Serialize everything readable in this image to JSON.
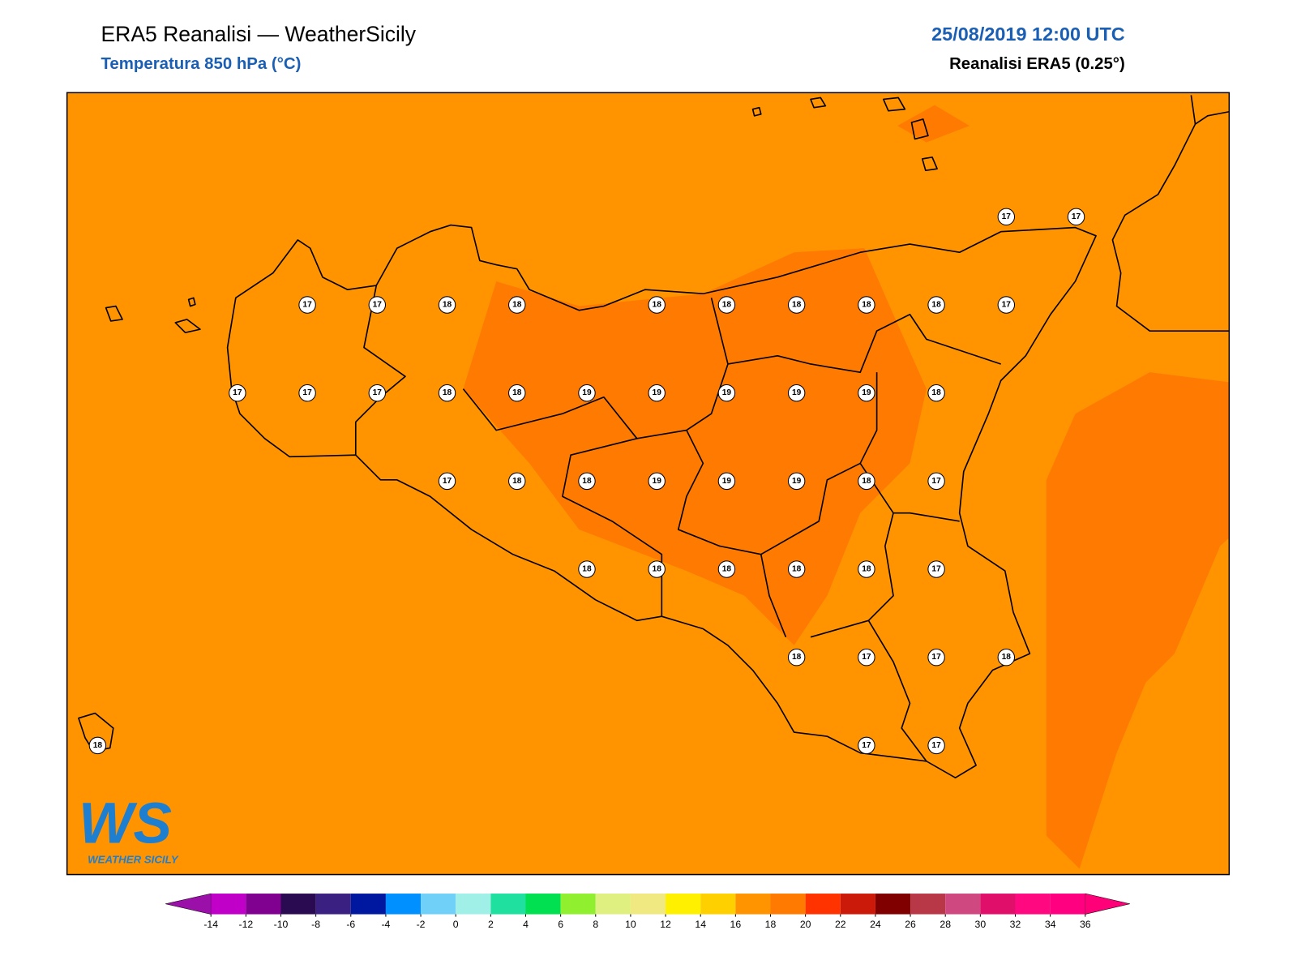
{
  "header": {
    "title": "ERA5 Reanalisi — WeatherSicily",
    "subtitle": "Temperatura 850 hPa (°C)",
    "datetime": "25/08/2019 12:00 UTC",
    "source": "Reanalisi ERA5 (0.25°)"
  },
  "stations": [
    17,
    17,
    17,
    17,
    18,
    18,
    18,
    18,
    18,
    18,
    18,
    17,
    17,
    17,
    17,
    18,
    18,
    19,
    19,
    19,
    19,
    19,
    18,
    17,
    18,
    18,
    19,
    19,
    19,
    18,
    17,
    18,
    18,
    18,
    18,
    18,
    17,
    18,
    17,
    17,
    18,
    18,
    17,
    17
  ],
  "colorbar": {
    "ticks": [
      -14,
      -12,
      -10,
      -8,
      -6,
      -4,
      -2,
      0,
      2,
      4,
      6,
      8,
      10,
      12,
      14,
      16,
      18,
      20,
      22,
      24,
      26,
      28,
      30,
      32,
      34,
      36
    ],
    "colors": [
      "#c000c8",
      "#800090",
      "#2a0a50",
      "#3a2080",
      "#0018a0",
      "#0090ff",
      "#70d0f8",
      "#a0f0e8",
      "#20e0a0",
      "#00e050",
      "#90f030",
      "#e0f080",
      "#f0e880",
      "#fff000",
      "#ffd000",
      "#ff9400",
      "#ff7a00",
      "#ff3300",
      "#cc1a0a",
      "#800000",
      "#b83848",
      "#d04880",
      "#e0106a",
      "#ff0880",
      "#ff0080"
    ],
    "under_color": "#9a10a8",
    "over_color": "#ff0078"
  },
  "logo": {
    "mark": "WS",
    "caption": "WEATHER SICILY"
  }
}
